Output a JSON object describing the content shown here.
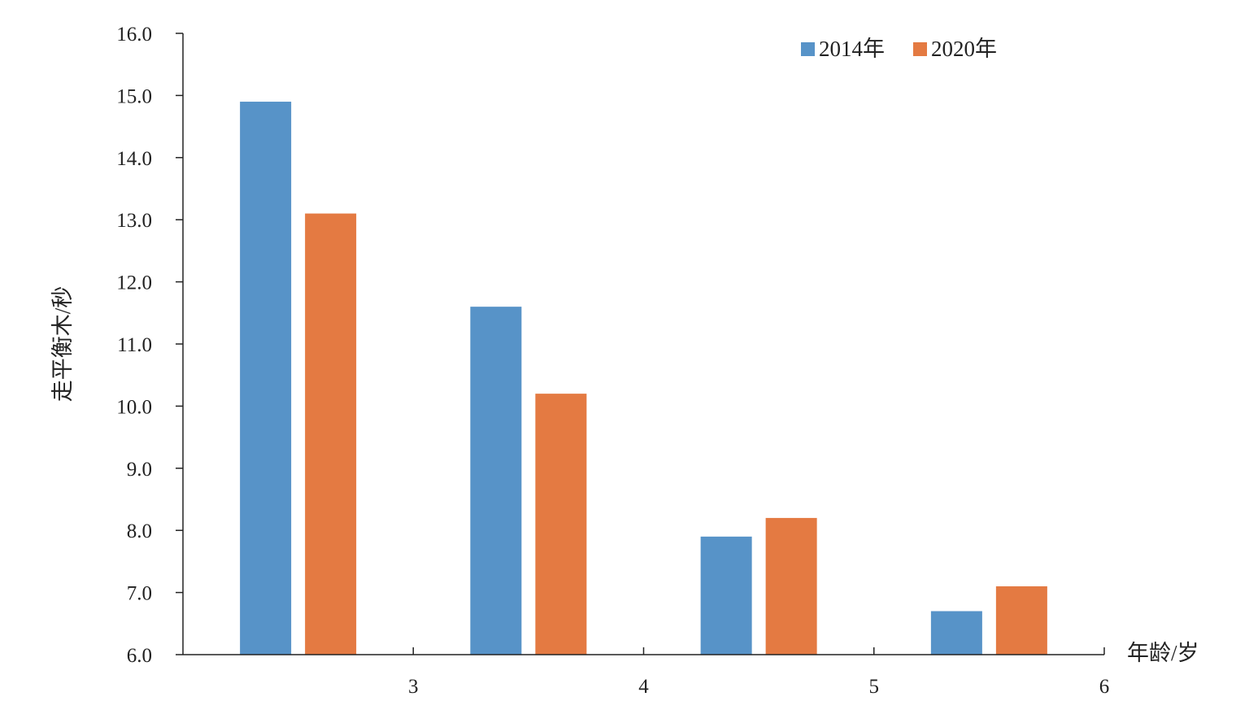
{
  "chart_data": {
    "type": "bar",
    "title": "",
    "xlabel": "年龄/岁",
    "ylabel": "走平衡木/秒",
    "x_ticks": [
      "3",
      "4",
      "5",
      "6"
    ],
    "ylim": [
      6.0,
      16.0
    ],
    "y_ticks": [
      "6.0",
      "7.0",
      "8.0",
      "9.0",
      "10.0",
      "11.0",
      "12.0",
      "13.0",
      "14.0",
      "15.0",
      "16.0"
    ],
    "grid": false,
    "legend_position": "top-right",
    "series": [
      {
        "name": "2014年",
        "color": "#5793c8",
        "values": [
          14.9,
          11.6,
          7.9,
          6.7
        ]
      },
      {
        "name": "2020年",
        "color": "#e47a42",
        "values": [
          13.1,
          10.2,
          8.2,
          7.1
        ]
      }
    ]
  }
}
